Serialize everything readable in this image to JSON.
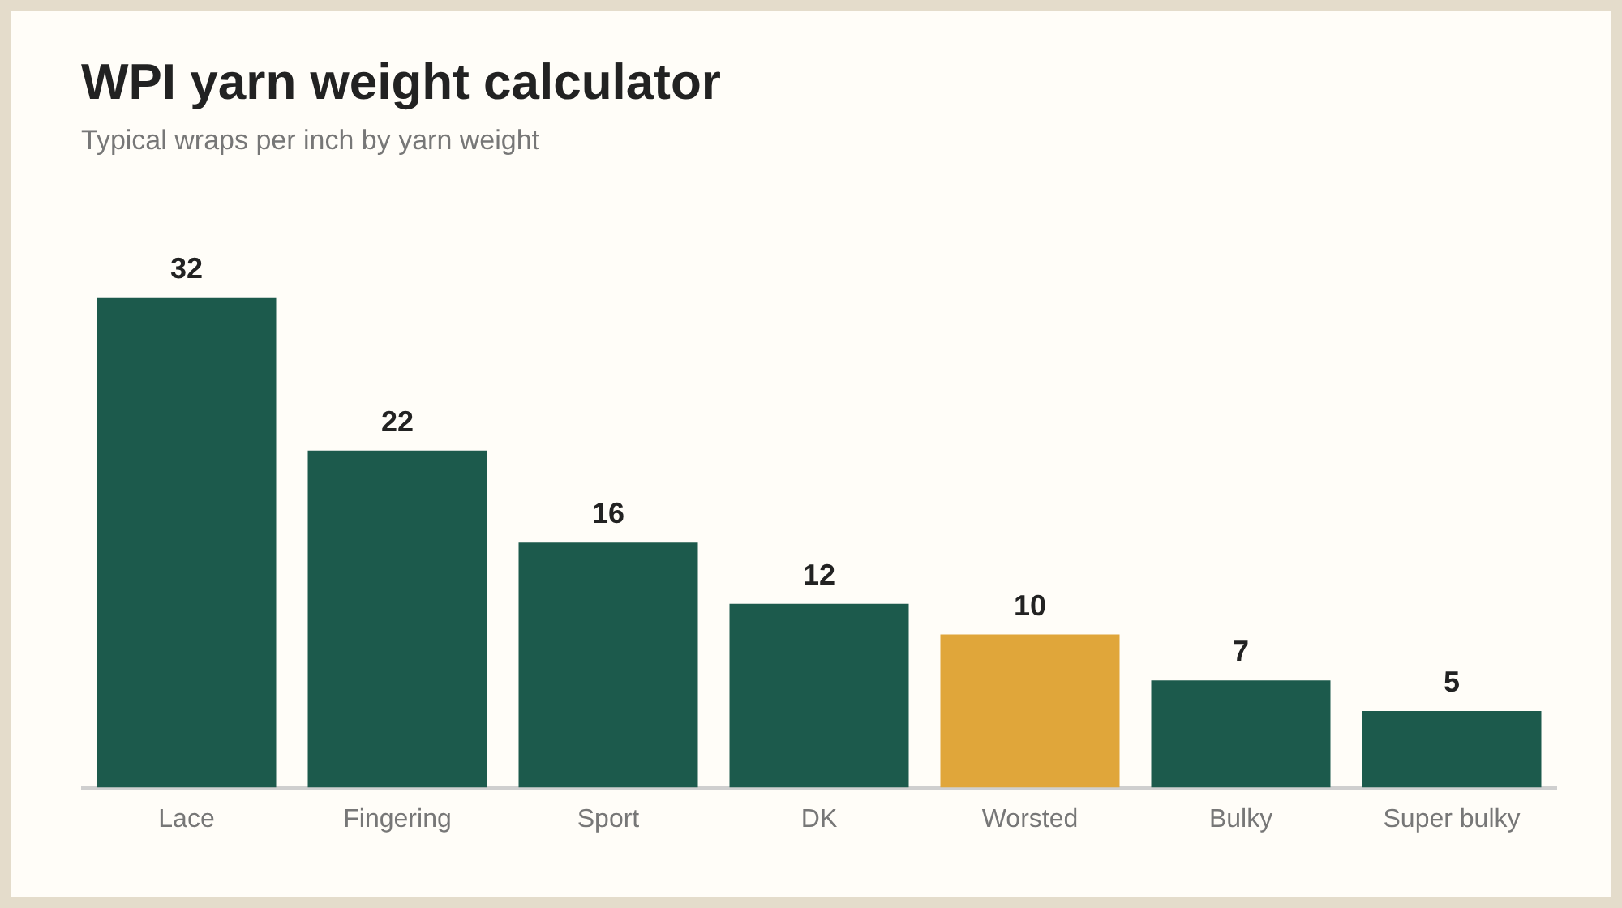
{
  "chart_data": {
    "type": "bar",
    "title": "WPI yarn weight calculator",
    "subtitle": "Typical wraps per inch by yarn weight",
    "categories": [
      "Lace",
      "Fingering",
      "Sport",
      "DK",
      "Worsted",
      "Bulky",
      "Super bulky"
    ],
    "values": [
      32,
      22,
      16,
      12,
      10,
      7,
      5
    ],
    "colors": [
      "#1c5a4c",
      "#1c5a4c",
      "#1c5a4c",
      "#1c5a4c",
      "#e0a63a",
      "#1c5a4c",
      "#1c5a4c"
    ],
    "data_labels": true,
    "legend": false,
    "grid": false
  }
}
